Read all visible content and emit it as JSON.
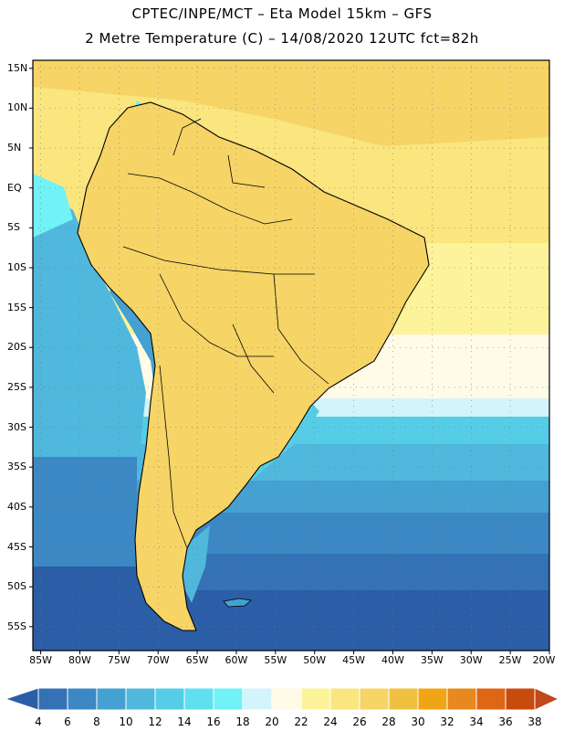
{
  "header": {
    "line1": "CPTEC/INPE/MCT –  Eta Model 15km – GFS",
    "line2": "2 Metre Temperature (C) – 14/08/2020 12UTC fct=82h"
  },
  "map": {
    "lat_labels": [
      "15N",
      "10N",
      "5N",
      "EQ",
      "5S",
      "10S",
      "15S",
      "20S",
      "25S",
      "30S",
      "35S",
      "40S",
      "45S",
      "50S",
      "55S"
    ],
    "lon_labels": [
      "85W",
      "80W",
      "75W",
      "70W",
      "65W",
      "60W",
      "55W",
      "50W",
      "45W",
      "40W",
      "35W",
      "30W",
      "25W",
      "20W"
    ],
    "lat_range": [
      -58,
      16
    ],
    "lon_range": [
      -86,
      -20
    ]
  },
  "legend": {
    "labels": [
      "4",
      "6",
      "8",
      "10",
      "12",
      "14",
      "16",
      "18",
      "20",
      "22",
      "24",
      "26",
      "28",
      "30",
      "32",
      "34",
      "36",
      "38"
    ],
    "colors": [
      "#2b5ea6",
      "#3471b5",
      "#3c88c4",
      "#45a1d1",
      "#4fb8dc",
      "#55cde6",
      "#5ee0ee",
      "#70f2f6",
      "#d2f4fa",
      "#fffbe6",
      "#fdf39a",
      "#fae57e",
      "#f6d466",
      "#f0c040",
      "#f0a514",
      "#e8881e",
      "#de6614",
      "#c84a0c",
      "#c04a1a"
    ]
  }
}
